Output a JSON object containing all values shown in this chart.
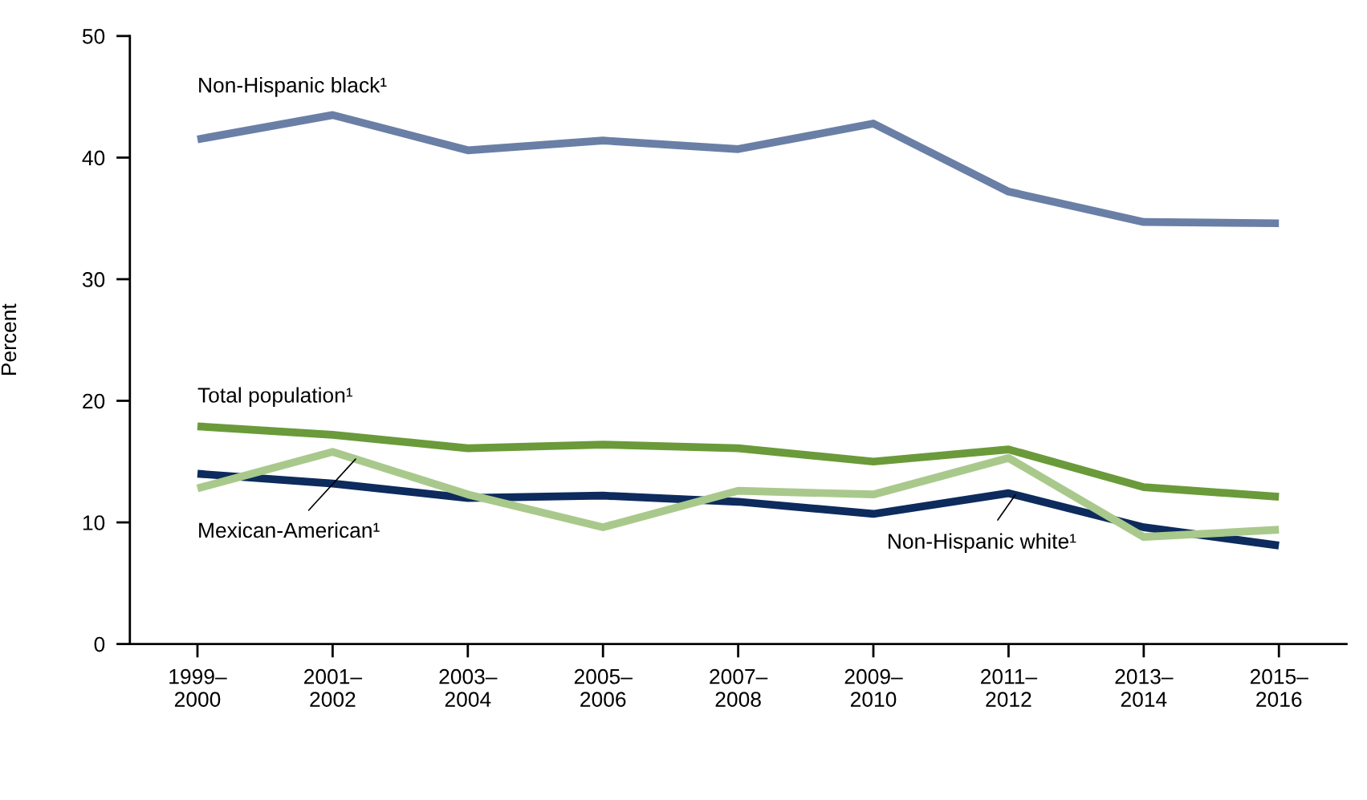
{
  "chart_data": {
    "type": "line",
    "ylabel": "Percent",
    "categories": [
      "1999–\n2000",
      "2001–\n2002",
      "2003–\n2004",
      "2005–\n2006",
      "2007–\n2008",
      "2009–\n2010",
      "2011–\n2012",
      "2013–\n2014",
      "2015–\n2016"
    ],
    "series": [
      {
        "name": "Non-Hispanic black¹",
        "color": "#6a7fa6",
        "values": [
          41.5,
          43.5,
          40.6,
          41.4,
          40.7,
          42.8,
          37.2,
          34.7,
          34.6
        ]
      },
      {
        "name": "Total population¹",
        "color": "#6a9a3a",
        "values": [
          17.9,
          17.2,
          16.1,
          16.4,
          16.1,
          15.0,
          16.0,
          12.9,
          12.1
        ]
      },
      {
        "name": "Non-Hispanic white¹",
        "color": "#0d2b5c",
        "values": [
          14.0,
          13.2,
          12.0,
          12.2,
          11.7,
          10.7,
          12.4,
          9.6,
          8.1
        ]
      },
      {
        "name": "Mexican-American¹",
        "color": "#a9c98c",
        "values": [
          12.8,
          15.8,
          12.3,
          9.6,
          12.6,
          12.3,
          15.3,
          8.8,
          9.4
        ]
      }
    ],
    "ylim": [
      0,
      50
    ],
    "yticks": [
      0,
      10,
      20,
      30,
      40,
      50
    ],
    "grid": false,
    "legend": false,
    "marker": "none",
    "line_style": "solid"
  }
}
